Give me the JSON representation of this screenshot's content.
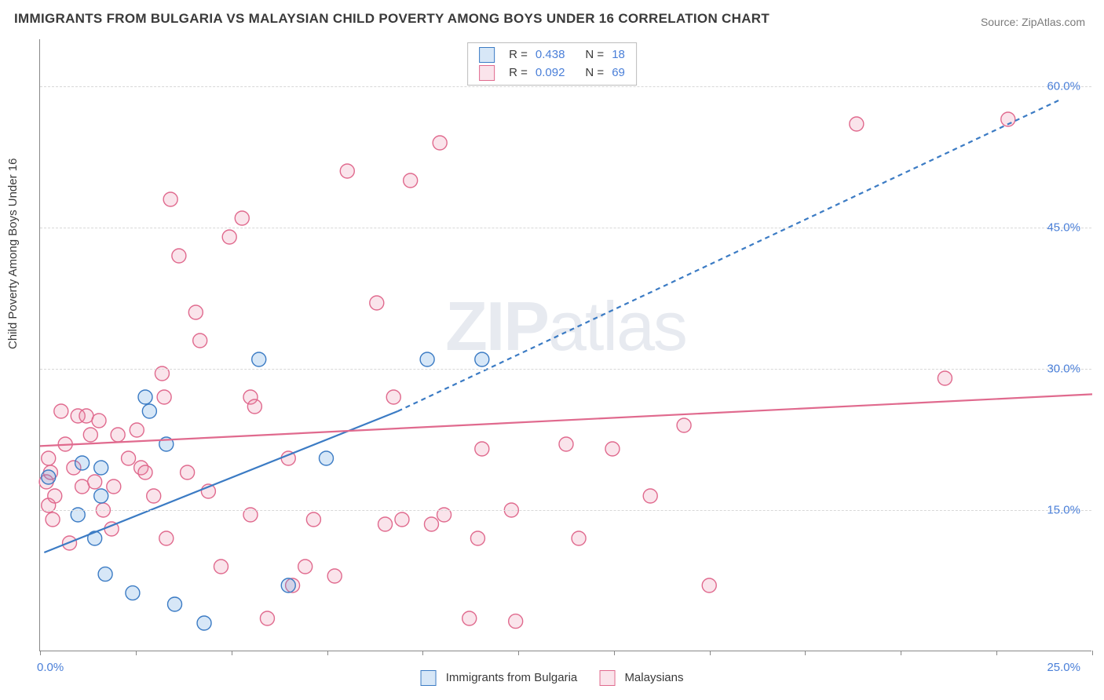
{
  "title": "IMMIGRANTS FROM BULGARIA VS MALAYSIAN CHILD POVERTY AMONG BOYS UNDER 16 CORRELATION CHART",
  "source": "Source: ZipAtlas.com",
  "y_axis_label": "Child Poverty Among Boys Under 16",
  "watermark": {
    "bold": "ZIP",
    "rest": "atlas"
  },
  "chart": {
    "type": "scatter-correlation",
    "background_color": "#ffffff",
    "grid_color": "#d8d8d8",
    "axis_color": "#888888",
    "text_color": "#3a3a3a",
    "tick_label_color": "#4a7fd8",
    "xlim": [
      0,
      25
    ],
    "ylim": [
      0,
      65
    ],
    "x_tick_positions": [
      0,
      2.27,
      4.55,
      6.82,
      9.09,
      11.36,
      13.64,
      15.91,
      18.18,
      20.45,
      22.73,
      25
    ],
    "x_start_label": "0.0%",
    "x_end_label": "25.0%",
    "y_ticks": [
      {
        "value": 15,
        "label": "15.0%"
      },
      {
        "value": 30,
        "label": "30.0%"
      },
      {
        "value": 45,
        "label": "45.0%"
      },
      {
        "value": 60,
        "label": "60.0%"
      }
    ],
    "marker_radius": 9,
    "marker_stroke_width": 1.4,
    "marker_fill_opacity": 0.22,
    "series": [
      {
        "name": "Immigrants from Bulgaria",
        "color": "#4a90d9",
        "stroke": "#3b7bc4",
        "R": "0.438",
        "N": "18",
        "trend": {
          "solid": {
            "x1": 0.1,
            "y1": 10.5,
            "x2": 8.5,
            "y2": 25.5
          },
          "dashed": {
            "x1": 8.5,
            "y1": 25.5,
            "x2": 24.2,
            "y2": 58.5
          },
          "stroke_width": 2.2
        },
        "points": [
          {
            "x": 0.2,
            "y": 18.5
          },
          {
            "x": 0.9,
            "y": 14.5
          },
          {
            "x": 1.0,
            "y": 20.0
          },
          {
            "x": 1.3,
            "y": 12.0
          },
          {
            "x": 1.45,
            "y": 16.5
          },
          {
            "x": 1.45,
            "y": 19.5
          },
          {
            "x": 1.55,
            "y": 8.2
          },
          {
            "x": 2.2,
            "y": 6.2
          },
          {
            "x": 2.5,
            "y": 27.0
          },
          {
            "x": 2.6,
            "y": 25.5
          },
          {
            "x": 3.0,
            "y": 22.0
          },
          {
            "x": 3.2,
            "y": 5.0
          },
          {
            "x": 3.9,
            "y": 3.0
          },
          {
            "x": 5.2,
            "y": 31.0
          },
          {
            "x": 5.9,
            "y": 7.0
          },
          {
            "x": 6.8,
            "y": 20.5
          },
          {
            "x": 9.2,
            "y": 31.0
          },
          {
            "x": 10.5,
            "y": 31.0
          }
        ]
      },
      {
        "name": "Malaysians",
        "color": "#e986a5",
        "stroke": "#e06a8e",
        "R": "0.092",
        "N": "69",
        "trend": {
          "solid": {
            "x1": 0.0,
            "y1": 21.8,
            "x2": 25.0,
            "y2": 27.3
          },
          "stroke_width": 2.2
        },
        "points": [
          {
            "x": 0.15,
            "y": 18.0
          },
          {
            "x": 0.2,
            "y": 20.5
          },
          {
            "x": 0.2,
            "y": 15.5
          },
          {
            "x": 0.25,
            "y": 19.0
          },
          {
            "x": 0.3,
            "y": 14.0
          },
          {
            "x": 0.35,
            "y": 16.5
          },
          {
            "x": 0.5,
            "y": 25.5
          },
          {
            "x": 0.6,
            "y": 22.0
          },
          {
            "x": 0.7,
            "y": 11.5
          },
          {
            "x": 0.8,
            "y": 19.5
          },
          {
            "x": 0.9,
            "y": 25.0
          },
          {
            "x": 1.0,
            "y": 17.5
          },
          {
            "x": 1.1,
            "y": 25.0
          },
          {
            "x": 1.2,
            "y": 23.0
          },
          {
            "x": 1.3,
            "y": 18.0
          },
          {
            "x": 1.4,
            "y": 24.5
          },
          {
            "x": 1.5,
            "y": 15.0
          },
          {
            "x": 1.7,
            "y": 13.0
          },
          {
            "x": 1.75,
            "y": 17.5
          },
          {
            "x": 1.85,
            "y": 23.0
          },
          {
            "x": 2.1,
            "y": 20.5
          },
          {
            "x": 2.3,
            "y": 23.5
          },
          {
            "x": 2.4,
            "y": 19.5
          },
          {
            "x": 2.5,
            "y": 19.0
          },
          {
            "x": 2.7,
            "y": 16.5
          },
          {
            "x": 2.9,
            "y": 29.5
          },
          {
            "x": 2.95,
            "y": 27.0
          },
          {
            "x": 3.0,
            "y": 12.0
          },
          {
            "x": 3.1,
            "y": 48.0
          },
          {
            "x": 3.3,
            "y": 42.0
          },
          {
            "x": 3.5,
            "y": 19.0
          },
          {
            "x": 3.7,
            "y": 36.0
          },
          {
            "x": 3.8,
            "y": 33.0
          },
          {
            "x": 4.0,
            "y": 17.0
          },
          {
            "x": 4.3,
            "y": 9.0
          },
          {
            "x": 4.5,
            "y": 44.0
          },
          {
            "x": 4.8,
            "y": 46.0
          },
          {
            "x": 5.0,
            "y": 27.0
          },
          {
            "x": 5.0,
            "y": 14.5
          },
          {
            "x": 5.1,
            "y": 26.0
          },
          {
            "x": 5.4,
            "y": 3.5
          },
          {
            "x": 5.9,
            "y": 20.5
          },
          {
            "x": 6.0,
            "y": 7.0
          },
          {
            "x": 6.3,
            "y": 9.0
          },
          {
            "x": 6.5,
            "y": 14.0
          },
          {
            "x": 7.0,
            "y": 8.0
          },
          {
            "x": 7.3,
            "y": 51.0
          },
          {
            "x": 8.0,
            "y": 37.0
          },
          {
            "x": 8.2,
            "y": 13.5
          },
          {
            "x": 8.4,
            "y": 27.0
          },
          {
            "x": 8.6,
            "y": 14.0
          },
          {
            "x": 8.8,
            "y": 50.0
          },
          {
            "x": 9.3,
            "y": 13.5
          },
          {
            "x": 9.5,
            "y": 54.0
          },
          {
            "x": 9.6,
            "y": 14.5
          },
          {
            "x": 10.2,
            "y": 3.5
          },
          {
            "x": 10.4,
            "y": 12.0
          },
          {
            "x": 10.5,
            "y": 21.5
          },
          {
            "x": 11.2,
            "y": 15.0
          },
          {
            "x": 11.3,
            "y": 3.2
          },
          {
            "x": 12.5,
            "y": 22.0
          },
          {
            "x": 12.8,
            "y": 12.0
          },
          {
            "x": 13.6,
            "y": 21.5
          },
          {
            "x": 14.5,
            "y": 16.5
          },
          {
            "x": 15.3,
            "y": 24.0
          },
          {
            "x": 15.9,
            "y": 7.0
          },
          {
            "x": 19.4,
            "y": 56.0
          },
          {
            "x": 21.5,
            "y": 29.0
          },
          {
            "x": 23.0,
            "y": 56.5
          }
        ]
      }
    ]
  },
  "bottom_legend": [
    {
      "label": "Immigrants from Bulgaria",
      "fill": "rgba(74,144,217,0.22)",
      "stroke": "#3b7bc4"
    },
    {
      "label": "Malaysians",
      "fill": "rgba(233,134,165,0.22)",
      "stroke": "#e06a8e"
    }
  ]
}
